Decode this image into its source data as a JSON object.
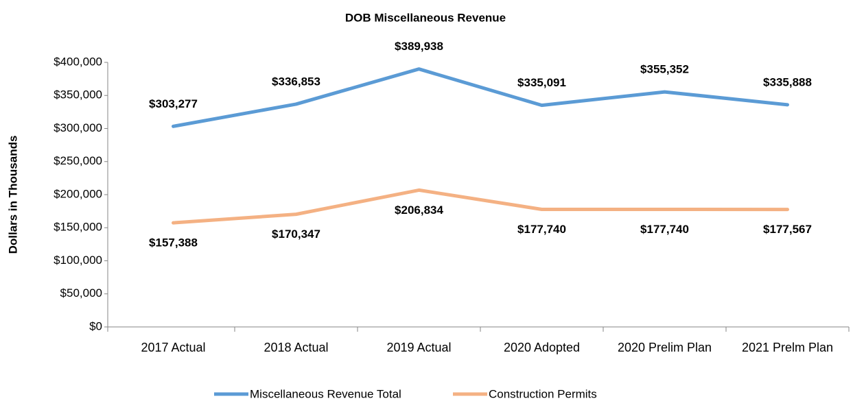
{
  "chart_data": {
    "type": "line",
    "title": "DOB Miscellaneous Revenue",
    "y_label": "Dollars in Thousands",
    "categories": [
      "2017 Actual",
      "2018 Actual",
      "2019 Actual",
      "2020 Adopted",
      "2020 Prelim Plan",
      "2021 Prelm Plan"
    ],
    "series": [
      {
        "name": "Miscellaneous Revenue Total",
        "color": "#5b9bd5",
        "values": [
          303277,
          336853,
          389938,
          335091,
          355352,
          335888
        ],
        "value_labels": [
          "$303,277",
          "$336,853",
          "$389,938",
          "$335,091",
          "$355,352",
          "$335,888"
        ]
      },
      {
        "name": "Construction Permits",
        "color": "#f4b183",
        "values": [
          157388,
          170347,
          206834,
          177740,
          177740,
          177567
        ],
        "value_labels": [
          "$157,388",
          "$170,347",
          "$206,834",
          "$177,740",
          "$177,740",
          "$177,567"
        ]
      }
    ],
    "ylim": [
      0,
      400000
    ],
    "yticks": [
      {
        "value": 0,
        "label": "$0"
      },
      {
        "value": 50000,
        "label": "$50,000"
      },
      {
        "value": 100000,
        "label": "$100,000"
      },
      {
        "value": 150000,
        "label": "$150,000"
      },
      {
        "value": 200000,
        "label": "$200,000"
      },
      {
        "value": 250000,
        "label": "$250,000"
      },
      {
        "value": 300000,
        "label": "$300,000"
      },
      {
        "value": 350000,
        "label": "$350,000"
      },
      {
        "value": 400000,
        "label": "$400,000"
      }
    ],
    "legend": "bottom"
  }
}
